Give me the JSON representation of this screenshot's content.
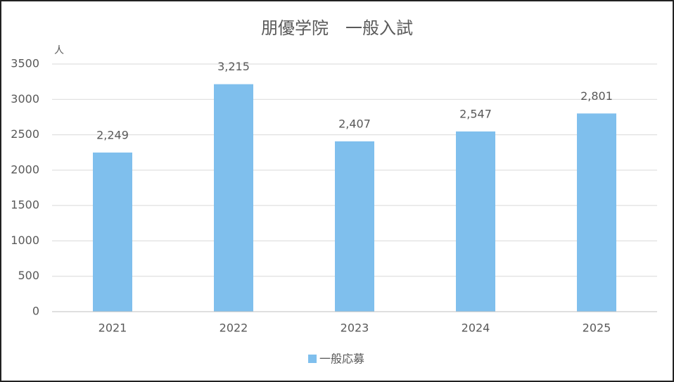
{
  "chart_data": {
    "type": "bar",
    "title": "朋優学院　一般入試",
    "ylabel": "人",
    "categories": [
      "2021",
      "2022",
      "2023",
      "2024",
      "2025"
    ],
    "series": [
      {
        "name": "一般応募",
        "color": "#7fbfed",
        "values": [
          2249,
          3215,
          2407,
          2547,
          2801
        ],
        "value_labels": [
          "2,249",
          "3,215",
          "2,407",
          "2,547",
          "2,801"
        ]
      }
    ],
    "ylim": [
      0,
      3500
    ],
    "yticks": [
      0,
      500,
      1000,
      1500,
      2000,
      2500,
      3000,
      3500
    ],
    "grid": true,
    "legend": "bottom"
  }
}
